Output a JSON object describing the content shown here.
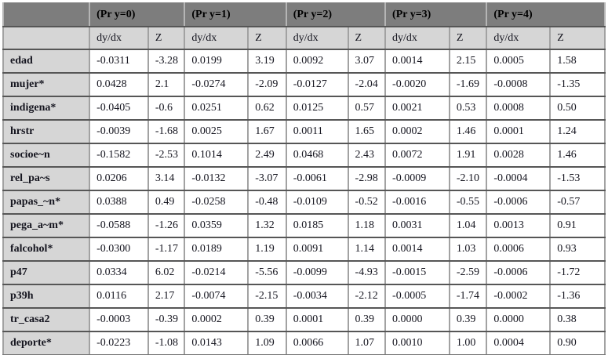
{
  "table": {
    "title_semantic": "ordered-outcome-marginal-effects-table",
    "corner_label": "",
    "groups": [
      {
        "label": "(Pr y=0)"
      },
      {
        "label": "(Pr y=1)"
      },
      {
        "label": "(Pr y=2)"
      },
      {
        "label": "(Pr y=3)"
      },
      {
        "label": "(Pr y=4)"
      }
    ],
    "sub_headers": {
      "dydx": "dy/dx",
      "z": "Z"
    },
    "rows": [
      {
        "label": "edad",
        "cells": [
          "-0.0311",
          "-3.28",
          "0.0199",
          "3.19",
          "0.0092",
          "3.07",
          "0.0014",
          "2.15",
          "0.0005",
          "1.58"
        ]
      },
      {
        "label": "mujer*",
        "cells": [
          "0.0428",
          "2.1",
          "-0.0274",
          "-2.09",
          "-0.0127",
          "-2.04",
          "-0.0020",
          "-1.69",
          "-0.0008",
          "-1.35"
        ]
      },
      {
        "label": "indigena*",
        "cells": [
          "-0.0405",
          "-0.6",
          "0.0251",
          "0.62",
          "0.0125",
          "0.57",
          "0.0021",
          "0.53",
          "0.0008",
          "0.50"
        ]
      },
      {
        "label": "hrstr",
        "cells": [
          "-0.0039",
          "-1.68",
          "0.0025",
          "1.67",
          "0.0011",
          "1.65",
          "0.0002",
          "1.46",
          "0.0001",
          "1.24"
        ]
      },
      {
        "label": "socioe~n",
        "cells": [
          "-0.1582",
          "-2.53",
          "0.1014",
          "2.49",
          "0.0468",
          "2.43",
          "0.0072",
          "1.91",
          "0.0028",
          "1.46"
        ]
      },
      {
        "label": "rel_pa~s",
        "cells": [
          "0.0206",
          "3.14",
          "-0.0132",
          "-3.07",
          "-0.0061",
          "-2.98",
          "-0.0009",
          "-2.10",
          "-0.0004",
          "-1.53"
        ]
      },
      {
        "label": "papas_~n*",
        "cells": [
          "0.0388",
          "0.49",
          "-0.0258",
          "-0.48",
          "-0.0109",
          "-0.52",
          "-0.0016",
          "-0.55",
          "-0.0006",
          "-0.57"
        ]
      },
      {
        "label": "pega_a~m*",
        "cells": [
          "-0.0588",
          "-1.26",
          "0.0359",
          "1.32",
          "0.0185",
          "1.18",
          "0.0031",
          "1.04",
          "0.0013",
          "0.91"
        ]
      },
      {
        "label": "falcohol*",
        "cells": [
          "-0.0300",
          "-1.17",
          "0.0189",
          "1.19",
          "0.0091",
          "1.14",
          "0.0014",
          "1.03",
          "0.0006",
          "0.93"
        ]
      },
      {
        "label": "p47",
        "cells": [
          "0.0334",
          "6.02",
          "-0.0214",
          "-5.56",
          "-0.0099",
          "-4.93",
          "-0.0015",
          "-2.59",
          "-0.0006",
          "-1.72"
        ]
      },
      {
        "label": "p39h",
        "cells": [
          "0.0116",
          "2.17",
          "-0.0074",
          "-2.15",
          "-0.0034",
          "-2.12",
          "-0.0005",
          "-1.74",
          "-0.0002",
          "-1.36"
        ]
      },
      {
        "label": "tr_casa2",
        "cells": [
          "-0.0003",
          "-0.39",
          "0.0002",
          "0.39",
          "0.0001",
          "0.39",
          "0.0000",
          "0.39",
          "0.0000",
          "0.38"
        ]
      },
      {
        "label": "deporte*",
        "cells": [
          "-0.0223",
          "-1.08",
          "0.0143",
          "1.09",
          "0.0066",
          "1.07",
          "0.0010",
          "1.00",
          "0.0004",
          "0.90"
        ]
      }
    ]
  },
  "colors": {
    "header_bg": "#7d7d7d",
    "subheader_bg": "#d6d6d6",
    "label_col_bg": "#d6d6d6",
    "data_bg": "#ffffff",
    "row_border": "#565656",
    "col_border": "#a2a2a2",
    "text": "#15151f"
  }
}
